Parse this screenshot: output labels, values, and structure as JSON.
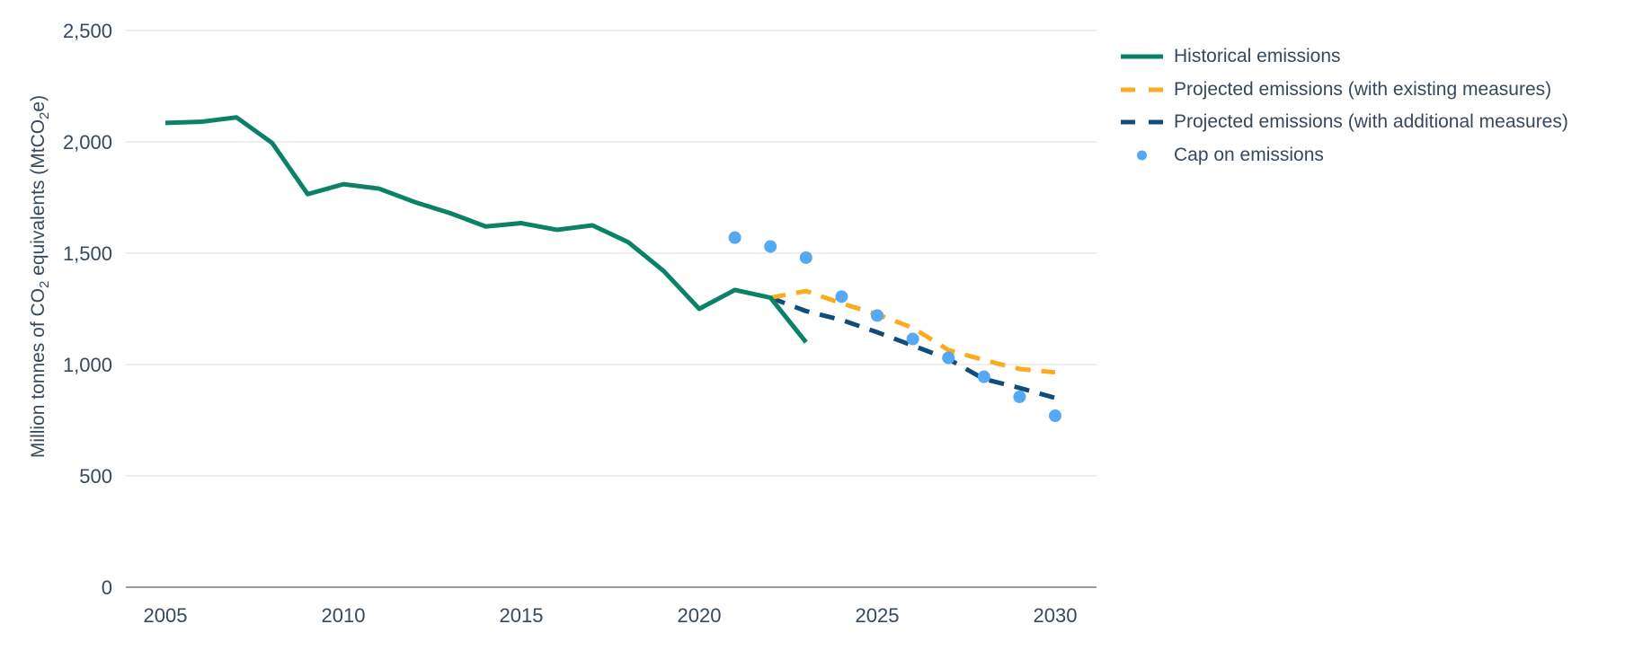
{
  "colors": {
    "historical": "#0B8268",
    "existing": "#FAAB1E",
    "additional": "#114D7A",
    "cap": "#55A9F2",
    "text": "#36495E",
    "grid": "#E8E8E8",
    "axis_line": "#9B9B9B"
  },
  "axis": {
    "y": {
      "title_parts": [
        "Million tonnes of CO",
        "2",
        " equivalents (MtCO",
        "2",
        "e)"
      ],
      "ticks": [
        {
          "label": "0",
          "value": 0
        },
        {
          "label": "500",
          "value": 500
        },
        {
          "label": "1,000",
          "value": 1000
        },
        {
          "label": "1,500",
          "value": 1500
        },
        {
          "label": "2,000",
          "value": 2000
        },
        {
          "label": "2,500",
          "value": 2500
        }
      ]
    },
    "x": {
      "ticks": [
        {
          "label": "2005",
          "value": 2005
        },
        {
          "label": "2010",
          "value": 2010
        },
        {
          "label": "2015",
          "value": 2015
        },
        {
          "label": "2020",
          "value": 2020
        },
        {
          "label": "2025",
          "value": 2025
        },
        {
          "label": "2030",
          "value": 2030
        }
      ]
    }
  },
  "chart_data": {
    "type": "line",
    "title": "",
    "ylabel": "Million tonnes of CO2 equivalents (MtCO2e)",
    "xlabel": "",
    "ylim": [
      0,
      2500
    ],
    "xlim": [
      2005,
      2030
    ],
    "grid": "horizontal",
    "legend_position": "top-right",
    "series": [
      {
        "id": "historical",
        "label": "Historical emissions",
        "color": "historical",
        "dash": null,
        "x": [
          2005,
          2006,
          2007,
          2008,
          2009,
          2010,
          2011,
          2012,
          2013,
          2014,
          2015,
          2016,
          2017,
          2018,
          2019,
          2020,
          2021,
          2022,
          2023
        ],
        "values": [
          2085,
          2090,
          2110,
          1995,
          1765,
          1810,
          1790,
          1730,
          1680,
          1620,
          1635,
          1605,
          1625,
          1550,
          1420,
          1250,
          1335,
          1300,
          1100
        ]
      },
      {
        "id": "projected-existing",
        "label": "Projected emissions (with existing measures)",
        "color": "existing",
        "dash": "17 12",
        "x": [
          2022,
          2023,
          2024,
          2025,
          2026,
          2027,
          2028,
          2029,
          2030
        ],
        "values": [
          1300,
          1330,
          1275,
          1225,
          1165,
          1065,
          1020,
          980,
          965
        ]
      },
      {
        "id": "projected-additional",
        "label": "Projected emissions (with additional measures)",
        "color": "additional",
        "dash": "17 12",
        "x": [
          2022,
          2023,
          2024,
          2025,
          2026,
          2027,
          2028,
          2029,
          2030
        ],
        "values": [
          1300,
          1240,
          1200,
          1145,
          1085,
          1025,
          935,
          895,
          850
        ]
      }
    ],
    "points": {
      "id": "cap",
      "label": "Cap on emissions",
      "color": "cap",
      "x": [
        2021,
        2022,
        2023,
        2024,
        2025,
        2026,
        2027,
        2028,
        2029,
        2030
      ],
      "values": [
        1570,
        1530,
        1480,
        1305,
        1220,
        1115,
        1030,
        945,
        855,
        770
      ]
    }
  }
}
